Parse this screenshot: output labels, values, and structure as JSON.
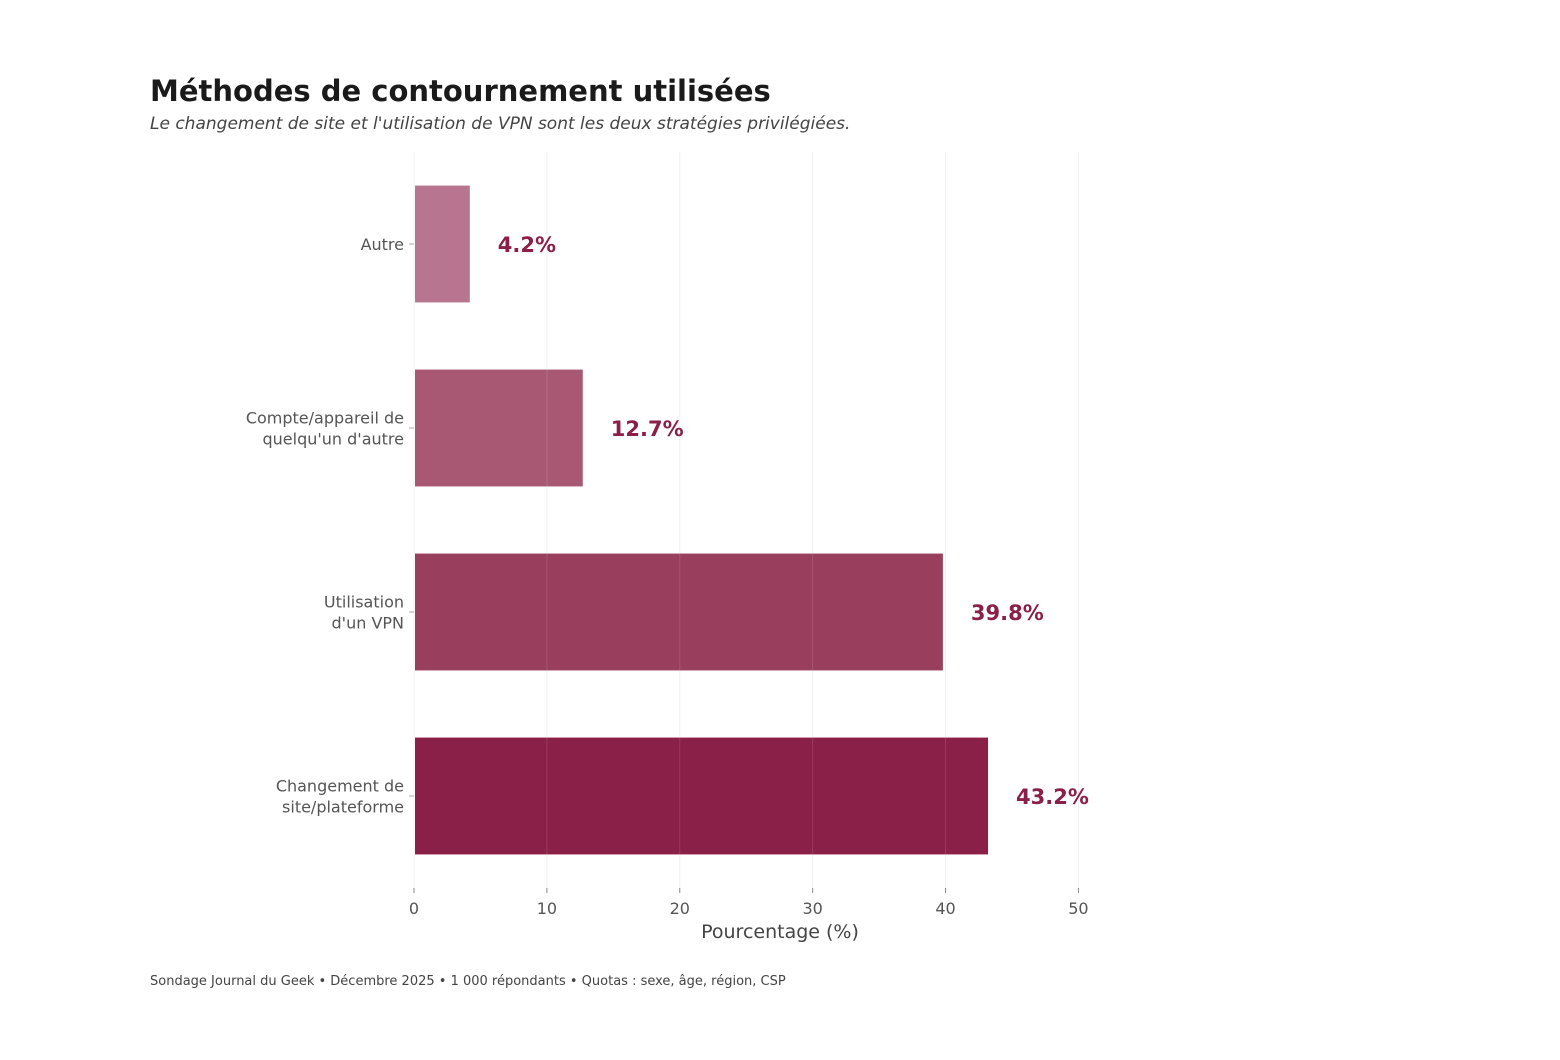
{
  "header": {
    "title": "Méthodes de contournement utilisées",
    "subtitle": "Le changement de site et l'utilisation de VPN sont les deux stratégies privilégiées."
  },
  "footer": {
    "source": "Sondage Journal du Geek • Décembre 2025 • 1 000 répondants • Quotas : sexe, âge, région, CSP"
  },
  "chart_data": {
    "type": "bar",
    "orientation": "horizontal",
    "title": "Méthodes de contournement utilisées",
    "subtitle": "Le changement de site et l'utilisation de VPN sont les deux stratégies privilégiées.",
    "categories": [
      [
        "Autre"
      ],
      [
        "Compte/appareil de",
        "quelqu'un d'autre"
      ],
      [
        "Utilisation",
        "d'un VPN"
      ],
      [
        "Changement de",
        "site/plateforme"
      ]
    ],
    "values": [
      4.2,
      12.7,
      39.8,
      43.2
    ],
    "value_labels": [
      "4.2%",
      "12.7%",
      "39.8%",
      "43.2%"
    ],
    "bar_colors": [
      "#b8758f",
      "#a95873",
      "#993e5d",
      "#8a1f47"
    ],
    "label_color": "#8a1f47",
    "xlabel": "Pourcentage (%)",
    "ylabel": "",
    "xlim": [
      0,
      52
    ],
    "xticks": [
      0,
      10,
      20,
      30,
      40,
      50
    ],
    "xtick_labels": [
      "0",
      "10",
      "20",
      "30",
      "40",
      "50"
    ],
    "grid": "vertical",
    "legend": "none"
  }
}
